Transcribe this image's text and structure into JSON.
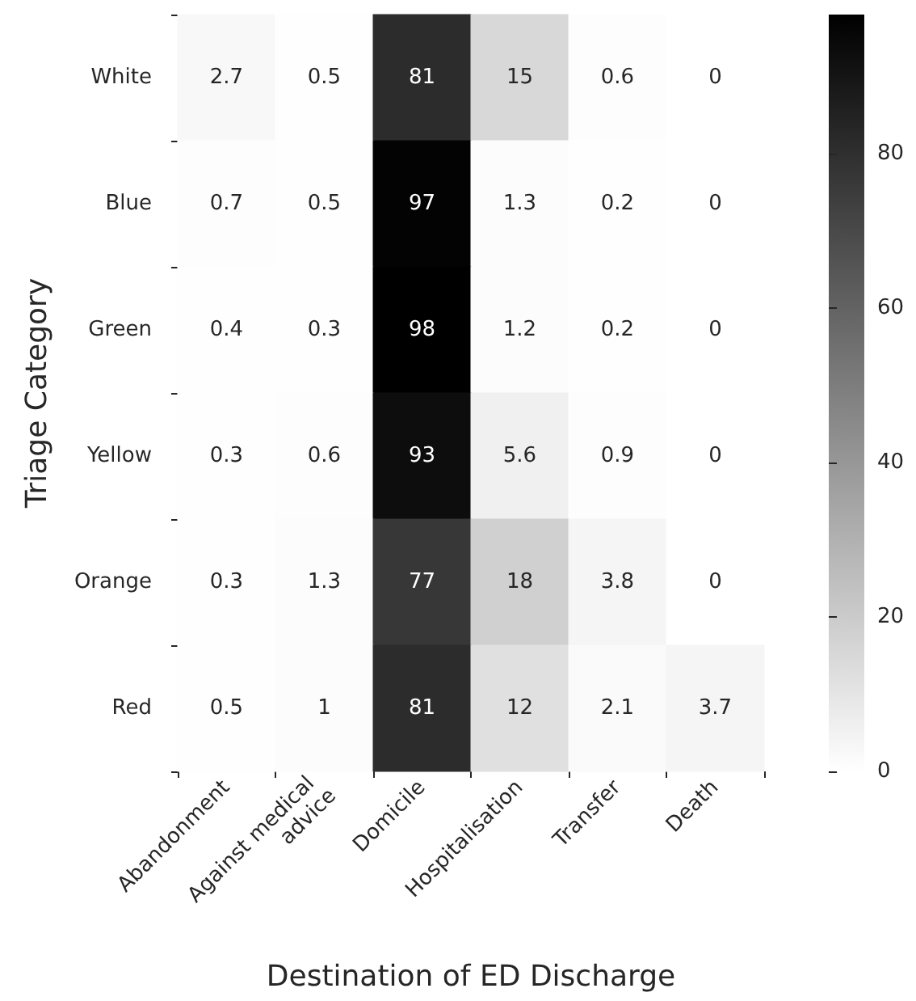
{
  "chart_data": {
    "type": "heatmap",
    "xlabel": "Destination of ED Discharge",
    "ylabel": "Triage Category",
    "categories": [
      "Abandonment",
      "Against medical advice",
      "Domicile",
      "Hospitalisation",
      "Transfer",
      "Death"
    ],
    "y_categories": [
      "White",
      "Blue",
      "Green",
      "Yellow",
      "Orange",
      "Red"
    ],
    "cells": [
      [
        2.7,
        0.5,
        81,
        15,
        0.6,
        0
      ],
      [
        0.7,
        0.5,
        97,
        1.3,
        0.2,
        0
      ],
      [
        0.4,
        0.3,
        98,
        1.2,
        0.2,
        0
      ],
      [
        0.3,
        0.6,
        93,
        5.6,
        0.9,
        0
      ],
      [
        0.3,
        1.3,
        77,
        18,
        3.8,
        0
      ],
      [
        0.5,
        1,
        81,
        12,
        2.1,
        3.7
      ]
    ],
    "clim": [
      0,
      98
    ],
    "cticks": [
      0,
      20,
      40,
      60,
      80
    ],
    "data_labels": true
  }
}
